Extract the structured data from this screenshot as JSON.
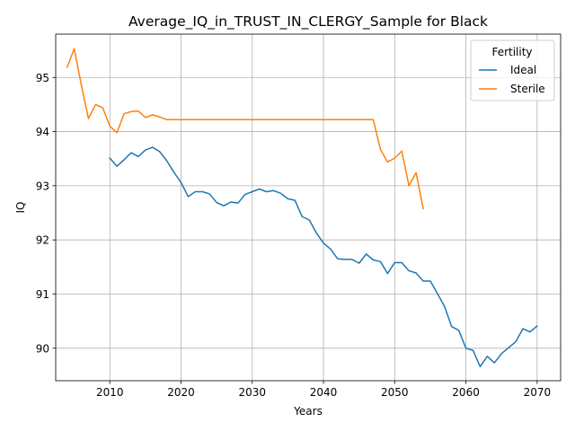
{
  "chart_data": {
    "type": "line",
    "title": "Average_IQ_in_TRUST_IN_CLERGY_Sample for Black",
    "xlabel": "Years",
    "ylabel": "IQ",
    "xlim": [
      2002.4,
      2073.3
    ],
    "ylim": [
      89.4,
      95.8
    ],
    "xticks": [
      2010,
      2020,
      2030,
      2040,
      2050,
      2060,
      2070
    ],
    "yticks": [
      90,
      91,
      92,
      93,
      94,
      95
    ],
    "grid": true,
    "legend": {
      "title": "Fertility",
      "placement": "top-right"
    },
    "series": [
      {
        "name": "Ideal",
        "color": "#1f77b4",
        "x": [
          2010,
          2011,
          2012,
          2013,
          2014,
          2015,
          2016,
          2017,
          2018,
          2019,
          2020,
          2021,
          2022,
          2023,
          2024,
          2025,
          2026,
          2027,
          2028,
          2029,
          2030,
          2031,
          2032,
          2033,
          2034,
          2035,
          2036,
          2037,
          2038,
          2039,
          2040,
          2041,
          2042,
          2043,
          2044,
          2045,
          2046,
          2047,
          2048,
          2049,
          2050,
          2051,
          2052,
          2053,
          2054,
          2055,
          2056,
          2057,
          2058,
          2059,
          2060,
          2061,
          2062,
          2063,
          2064,
          2065,
          2066,
          2067,
          2068,
          2069,
          2070
        ],
        "y": [
          93.51,
          93.36,
          93.48,
          93.61,
          93.54,
          93.66,
          93.71,
          93.63,
          93.46,
          93.25,
          93.06,
          92.8,
          92.89,
          92.89,
          92.85,
          92.69,
          92.63,
          92.7,
          92.68,
          92.84,
          92.89,
          92.94,
          92.89,
          92.91,
          92.86,
          92.76,
          92.73,
          92.43,
          92.37,
          92.13,
          91.94,
          91.83,
          91.65,
          91.64,
          91.64,
          91.57,
          91.74,
          91.63,
          91.6,
          91.38,
          91.58,
          91.58,
          91.43,
          91.39,
          91.24,
          91.24,
          91.01,
          90.77,
          90.4,
          90.33,
          90.0,
          89.96,
          89.66,
          89.85,
          89.73,
          89.9,
          90.01,
          90.12,
          90.36,
          90.3,
          90.41
        ]
      },
      {
        "name": "Sterile",
        "color": "#ff7f0e",
        "x": [
          2004,
          2005,
          2006,
          2007,
          2008,
          2009,
          2010,
          2011,
          2012,
          2013,
          2014,
          2015,
          2016,
          2017,
          2018,
          2019,
          2020,
          2021,
          2022,
          2023,
          2024,
          2025,
          2026,
          2027,
          2028,
          2029,
          2030,
          2031,
          2032,
          2033,
          2034,
          2035,
          2036,
          2037,
          2038,
          2039,
          2040,
          2041,
          2042,
          2043,
          2044,
          2045,
          2046,
          2047,
          2048,
          2049,
          2050,
          2051,
          2052,
          2053,
          2054
        ],
        "y": [
          95.19,
          95.53,
          94.86,
          94.24,
          94.5,
          94.44,
          94.1,
          93.98,
          94.33,
          94.37,
          94.38,
          94.26,
          94.31,
          94.27,
          94.22,
          94.22,
          94.22,
          94.22,
          94.22,
          94.22,
          94.22,
          94.22,
          94.22,
          94.22,
          94.22,
          94.22,
          94.22,
          94.22,
          94.22,
          94.22,
          94.22,
          94.22,
          94.22,
          94.22,
          94.22,
          94.22,
          94.22,
          94.22,
          94.22,
          94.22,
          94.22,
          94.22,
          94.22,
          94.22,
          93.67,
          93.44,
          93.51,
          93.64,
          93.0,
          93.24,
          92.58
        ]
      }
    ]
  }
}
